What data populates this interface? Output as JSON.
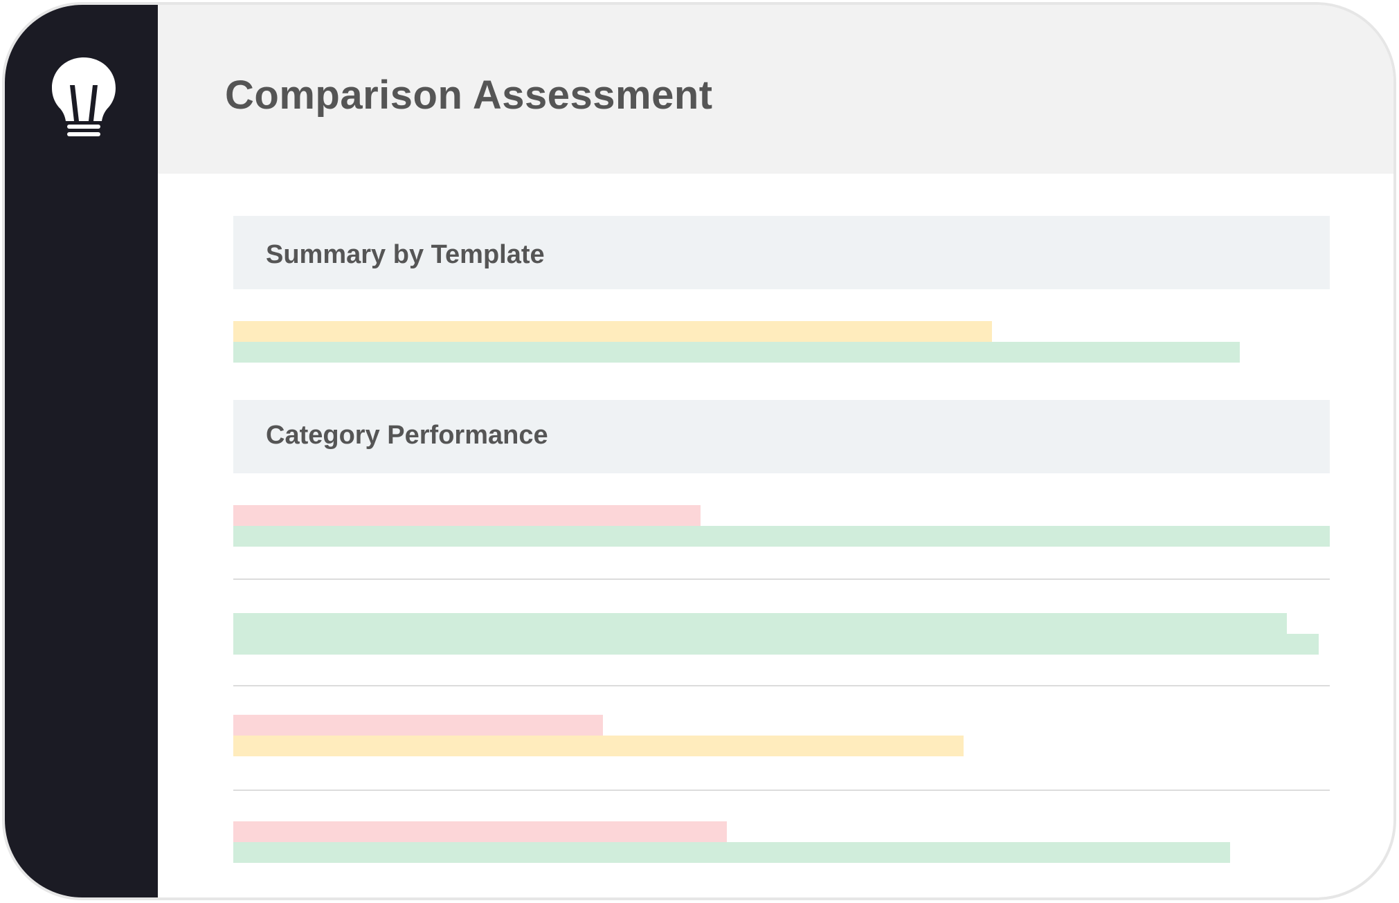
{
  "header": {
    "title": "Comparison Assessment"
  },
  "sections": [
    {
      "title": "Summary by Template"
    },
    {
      "title": "Category Performance"
    }
  ],
  "colors": {
    "sidebar": "#1b1b24",
    "header_bg": "#f2f2f2",
    "section_bg": "#eff2f4",
    "yellow": "#ffecbd",
    "green": "#d0eddb",
    "red": "#fcd6d8"
  },
  "icons": {
    "logo": "lightbulb-icon"
  },
  "summary_bars": [
    {
      "color": "yellow",
      "fill": 0.692
    },
    {
      "color": "green",
      "fill": 0.918
    }
  ],
  "category_rows": [
    {
      "bars": [
        {
          "color": "red",
          "fill": 0.426
        },
        {
          "color": "green",
          "fill": 1.0
        }
      ]
    },
    {
      "bars": [
        {
          "color": "green",
          "fill": 0.961
        },
        {
          "color": "green",
          "fill": 0.99
        }
      ]
    },
    {
      "bars": [
        {
          "color": "red",
          "fill": 0.337
        },
        {
          "color": "yellow",
          "fill": 0.666
        }
      ]
    },
    {
      "bars": [
        {
          "color": "red",
          "fill": 0.45
        },
        {
          "color": "green",
          "fill": 0.909
        }
      ]
    }
  ]
}
